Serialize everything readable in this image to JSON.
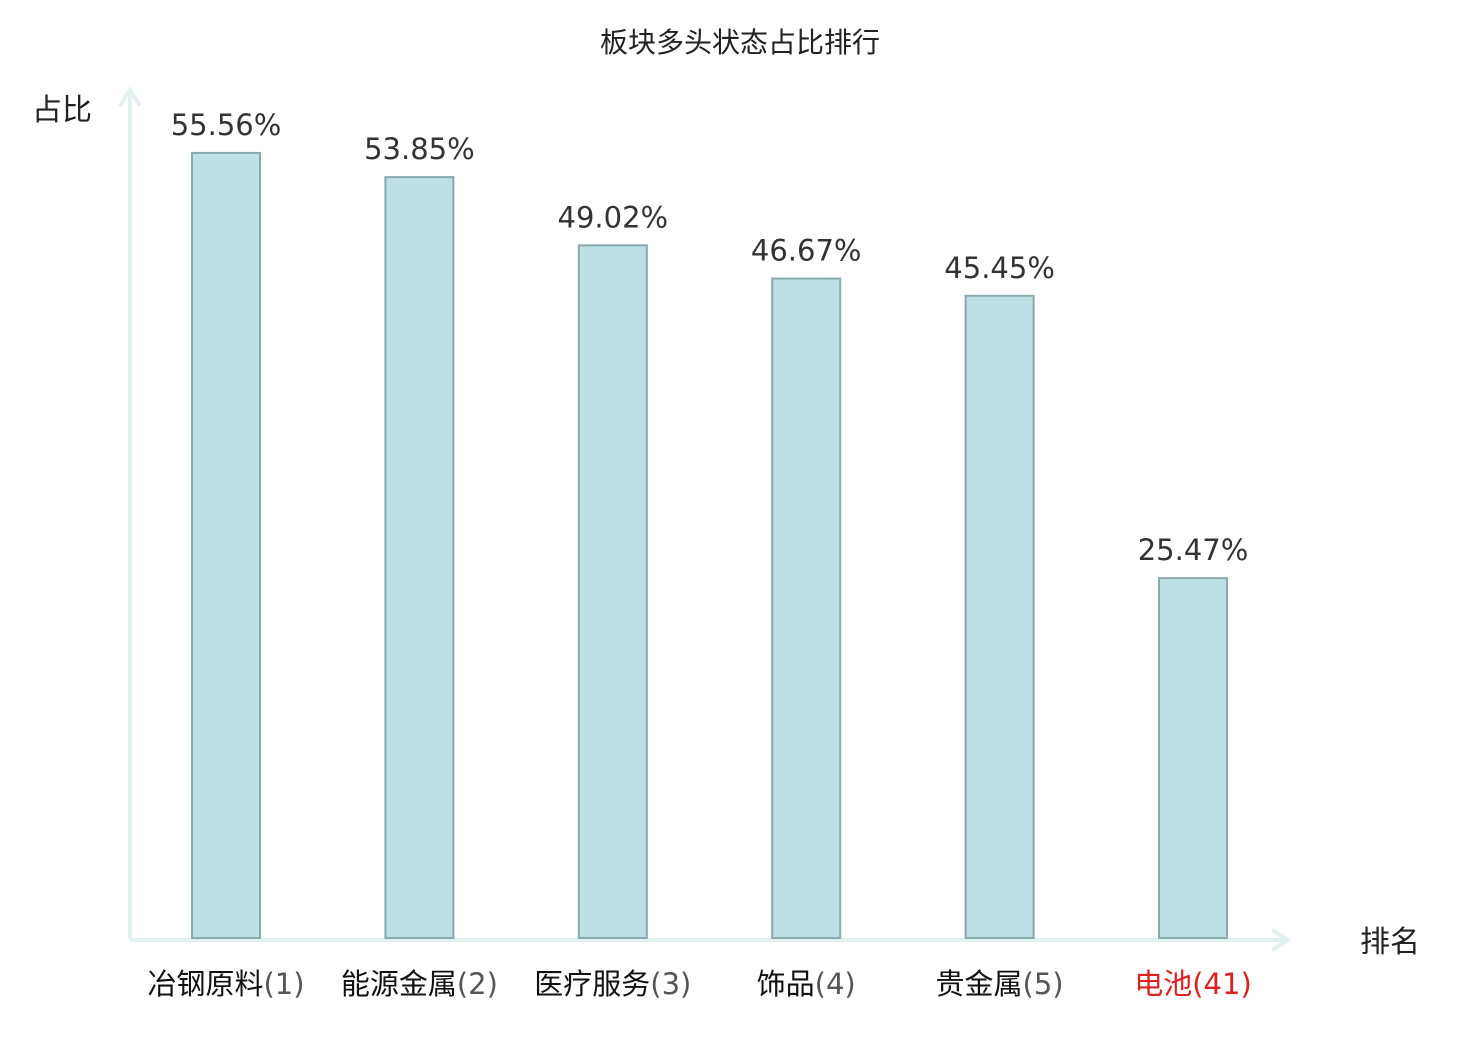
{
  "chart_data": {
    "type": "bar",
    "title": "板块多头状态占比排行",
    "xlabel": "排名",
    "ylabel": "占比",
    "categories": [
      "冶钢原料",
      "能源金属",
      "医疗服务",
      "饰品",
      "贵金属",
      "电池"
    ],
    "ranks": [
      "(1)",
      "(2)",
      "(3)",
      "(4)",
      "(5)",
      "(41)"
    ],
    "values": [
      55.56,
      53.85,
      49.02,
      46.67,
      45.45,
      25.47
    ],
    "value_labels": [
      "55.56%",
      "53.85%",
      "49.02%",
      "46.67%",
      "45.45%",
      "25.47%"
    ],
    "highlight_index": 5,
    "ylim": [
      0,
      60
    ],
    "grid": false,
    "colors": {
      "bar_fill": "#bce0e3",
      "bar_stroke": "#8aa9ad",
      "axis": "#dff2ef",
      "highlight": "#e02020"
    }
  }
}
